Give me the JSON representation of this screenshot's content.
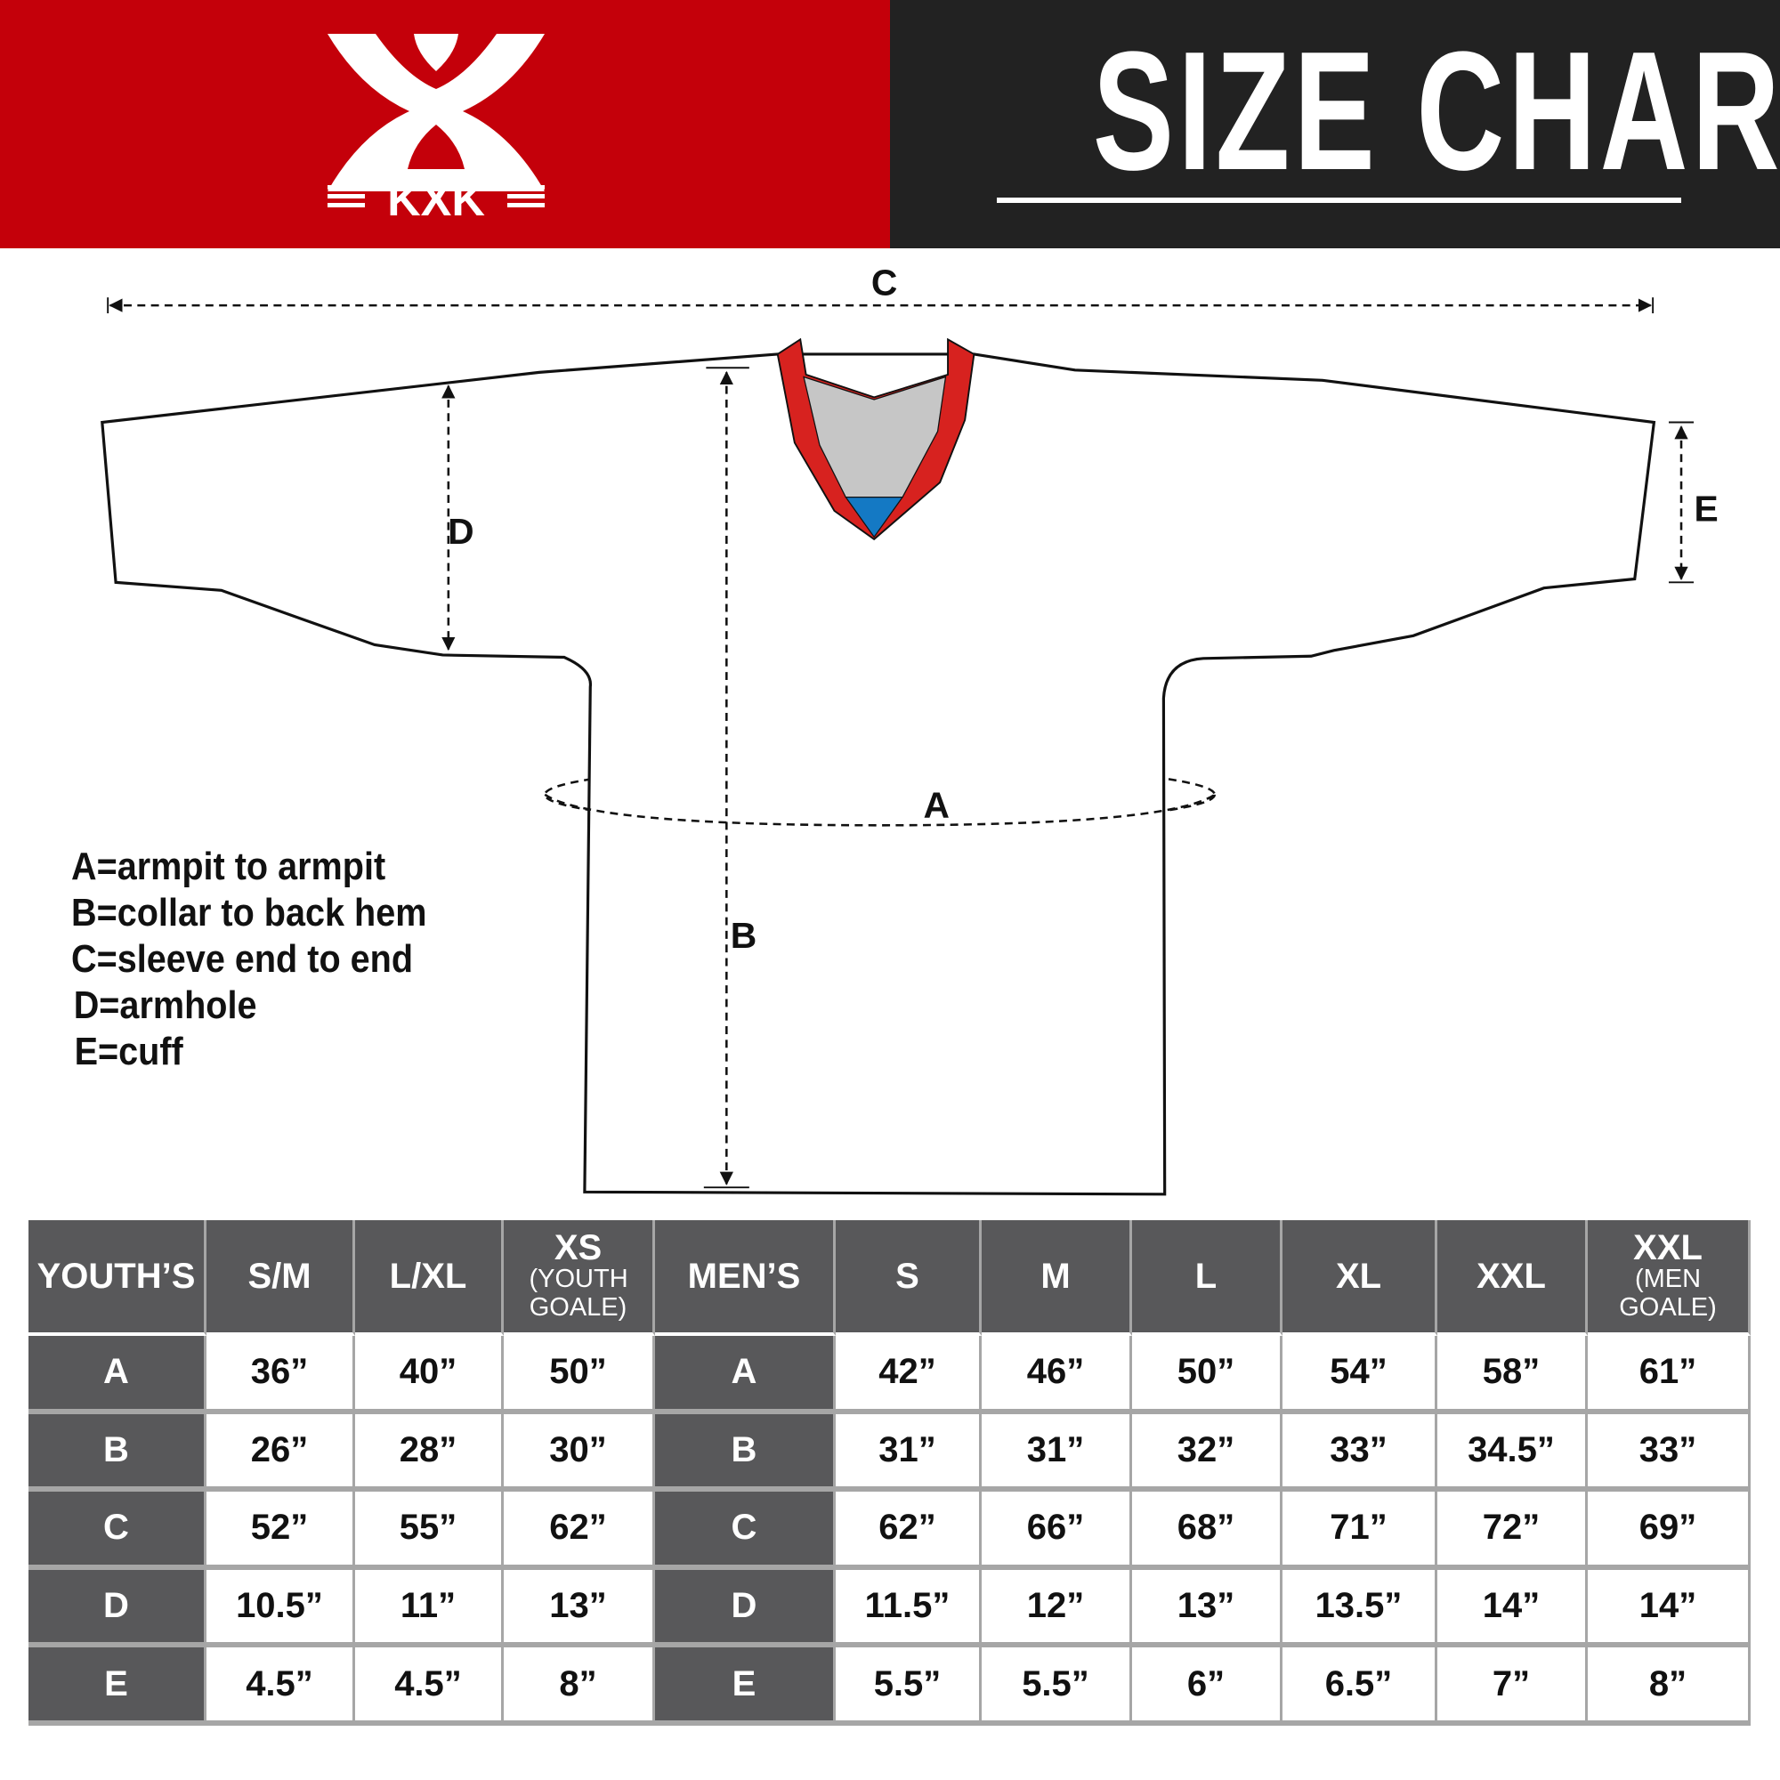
{
  "header": {
    "brand": "KXK",
    "title": "SIZE CHART",
    "colors": {
      "brand_red": "#c4000a",
      "dark": "#222222",
      "table_dark": "#58585a",
      "collar_red": "#d7221f",
      "collar_blue": "#1479c4",
      "collar_gray": "#c6c6c6"
    }
  },
  "diagram": {
    "labels": {
      "a": "A",
      "b": "B",
      "c": "C",
      "d": "D",
      "e": "E"
    }
  },
  "legend": [
    "A=armpit to armpit",
    "B=collar to back hem",
    "C=sleeve end to end",
    "D=armhole",
    "E=cuff"
  ],
  "table": {
    "youth_header": "YOUTH’S",
    "youth_sizes": [
      {
        "size": "S/M",
        "note": ""
      },
      {
        "size": "L/XL",
        "note": ""
      },
      {
        "size": "XS",
        "note": "(YOUTH GOALE)"
      }
    ],
    "men_header": "MEN’S",
    "men_sizes": [
      {
        "size": "S",
        "note": ""
      },
      {
        "size": "M",
        "note": ""
      },
      {
        "size": "L",
        "note": ""
      },
      {
        "size": "XL",
        "note": ""
      },
      {
        "size": "XXL",
        "note": ""
      },
      {
        "size": "XXL",
        "note": "(MEN GOALE)"
      }
    ],
    "rows": [
      {
        "label": "A",
        "youth": [
          "36”",
          "40”",
          "50”"
        ],
        "men": [
          "42”",
          "46”",
          "50”",
          "54”",
          "58”",
          "61”"
        ]
      },
      {
        "label": "B",
        "youth": [
          "26”",
          "28”",
          "30”"
        ],
        "men": [
          "31”",
          "31”",
          "32”",
          "33”",
          "34.5”",
          "33”"
        ]
      },
      {
        "label": "C",
        "youth": [
          "52”",
          "55”",
          "62”"
        ],
        "men": [
          "62”",
          "66”",
          "68”",
          "71”",
          "72”",
          "69”"
        ]
      },
      {
        "label": "D",
        "youth": [
          "10.5”",
          "11”",
          "13”"
        ],
        "men": [
          "11.5”",
          "12”",
          "13”",
          "13.5”",
          "14”",
          "14”"
        ]
      },
      {
        "label": "E",
        "youth": [
          "4.5”",
          "4.5”",
          "8”"
        ],
        "men": [
          "5.5”",
          "5.5”",
          "6”",
          "6.5”",
          "7”",
          "8”"
        ]
      }
    ]
  }
}
